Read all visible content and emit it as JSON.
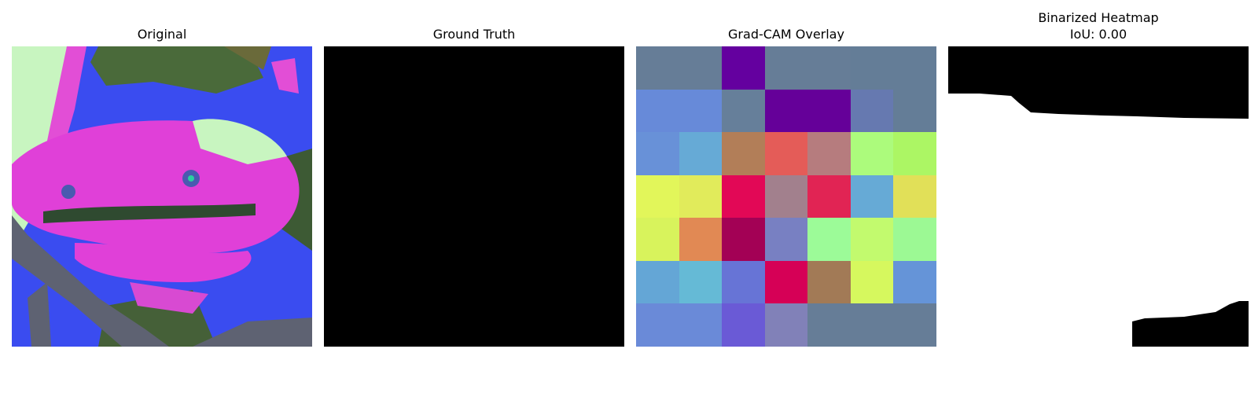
{
  "panels": {
    "original": {
      "title": "Original"
    },
    "ground_truth": {
      "title": "Ground Truth"
    },
    "gradcam": {
      "title": "Grad-CAM Overlay",
      "grid_colors": [
        [
          "#667d97",
          "#667d97",
          "#64009f",
          "#667d97",
          "#667d97",
          "#647d97",
          "#647d97"
        ],
        [
          "#678ad9",
          "#678ad9",
          "#667f9a",
          "#650099",
          "#650099",
          "#6679b0",
          "#647d97"
        ],
        [
          "#6891d8",
          "#66aad6",
          "#b27e58",
          "#e45c58",
          "#b67c7e",
          "#acfb7c",
          "#acf664"
        ],
        [
          "#e2f65a",
          "#e1eb5b",
          "#e20856",
          "#a2808d",
          "#e12454",
          "#66aad6",
          "#e1e058"
        ],
        [
          "#d8f35c",
          "#e18954",
          "#a30155",
          "#7880c2",
          "#9cfb98",
          "#c2fa6e",
          "#9cf994"
        ],
        [
          "#64a6d6",
          "#65bad6",
          "#6774d6",
          "#d60056",
          "#a27a56",
          "#d6f85e",
          "#6594d8"
        ],
        [
          "#6a8ad8",
          "#6a8ad8",
          "#6a5ad6",
          "#8181b8",
          "#667d97",
          "#667d97",
          "#667d97"
        ]
      ]
    },
    "binarized": {
      "title": "Binarized Heatmap\nIoU: 0.00"
    }
  }
}
